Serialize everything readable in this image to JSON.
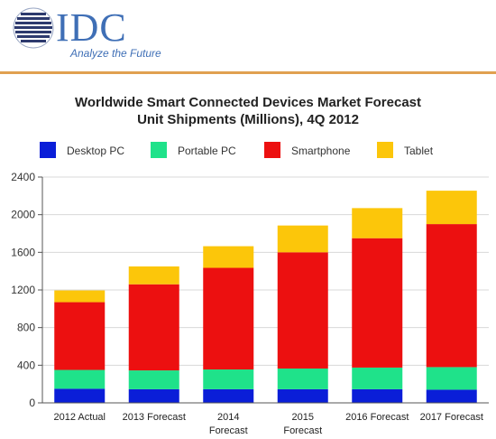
{
  "header": {
    "brand": "IDC",
    "tagline": "Analyze the Future"
  },
  "colors": {
    "desktop": "#0a1ed8",
    "portable": "#1fe28a",
    "smartphone": "#ec1010",
    "tablet": "#fcc60a",
    "brand": "#3f6fb6",
    "divider": "#e0a050"
  },
  "chart_data": {
    "type": "bar",
    "stacked": true,
    "title": [
      "Worldwide Smart Connected Devices Market Forecast",
      "Unit Shipments (Millions), 4Q 2012"
    ],
    "categories": [
      [
        "2012 Actual"
      ],
      [
        "2013 Forecast"
      ],
      [
        "2014",
        "Forecast"
      ],
      [
        "2015",
        "Forecast"
      ],
      [
        "2016 Forecast"
      ],
      [
        "2017 Forecast"
      ]
    ],
    "series": [
      {
        "name": "Desktop PC",
        "color": "#0a1ed8",
        "values": [
          150,
          145,
          145,
          145,
          145,
          140
        ]
      },
      {
        "name": "Portable PC",
        "color": "#1fe28a",
        "values": [
          200,
          200,
          210,
          220,
          230,
          240
        ]
      },
      {
        "name": "Smartphone",
        "color": "#ec1010",
        "values": [
          720,
          915,
          1080,
          1235,
          1375,
          1520
        ]
      },
      {
        "name": "Tablet",
        "color": "#fcc60a",
        "values": [
          125,
          190,
          230,
          285,
          320,
          355
        ]
      }
    ],
    "ylim": [
      0,
      2400
    ],
    "yticks": [
      0,
      400,
      800,
      1200,
      1600,
      2000,
      2400
    ],
    "grid": true,
    "legend": "top"
  }
}
